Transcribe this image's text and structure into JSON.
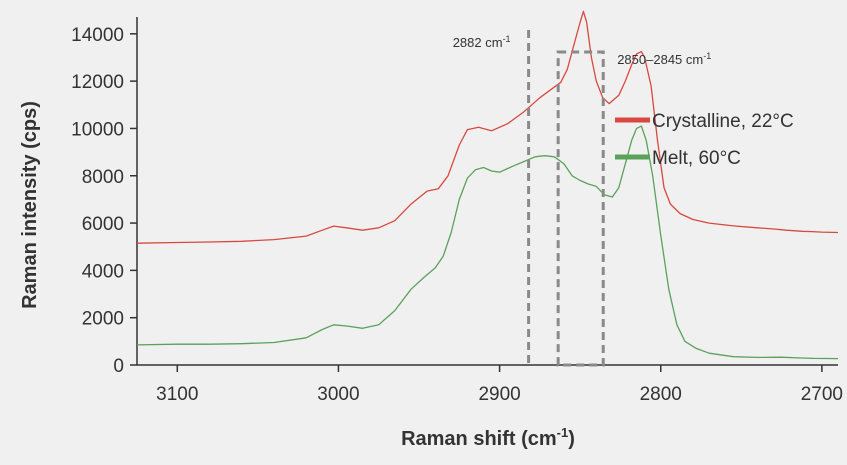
{
  "chart_data": {
    "type": "line",
    "title": "",
    "xlabel": "Raman shift (cm",
    "xlabel_sup": "-1",
    "xlabel_tail": ")",
    "ylabel": "Raman intensity (cps)",
    "xlim": [
      3125,
      2690
    ],
    "ylim": [
      0,
      14500
    ],
    "x_ticks": [
      3100,
      3000,
      2900,
      2800,
      2700
    ],
    "y_ticks": [
      0,
      2000,
      4000,
      6000,
      8000,
      10000,
      12000,
      14000
    ],
    "grid": false,
    "legend_position": "right",
    "series": [
      {
        "name": "Crystalline, 22°C",
        "color": "#d94840",
        "points": [
          [
            3125,
            5150
          ],
          [
            3100,
            5180
          ],
          [
            3080,
            5200
          ],
          [
            3060,
            5230
          ],
          [
            3040,
            5300
          ],
          [
            3020,
            5450
          ],
          [
            3010,
            5700
          ],
          [
            3003,
            5870
          ],
          [
            2995,
            5800
          ],
          [
            2985,
            5700
          ],
          [
            2975,
            5800
          ],
          [
            2965,
            6100
          ],
          [
            2955,
            6800
          ],
          [
            2945,
            7350
          ],
          [
            2938,
            7450
          ],
          [
            2932,
            8000
          ],
          [
            2925,
            9300
          ],
          [
            2920,
            9950
          ],
          [
            2913,
            10050
          ],
          [
            2905,
            9900
          ],
          [
            2895,
            10200
          ],
          [
            2885,
            10700
          ],
          [
            2875,
            11300
          ],
          [
            2867,
            11700
          ],
          [
            2862,
            11950
          ],
          [
            2858,
            12500
          ],
          [
            2854,
            13500
          ],
          [
            2850,
            14500
          ],
          [
            2848,
            14950
          ],
          [
            2846,
            14500
          ],
          [
            2843,
            13000
          ],
          [
            2840,
            12000
          ],
          [
            2836,
            11300
          ],
          [
            2832,
            11050
          ],
          [
            2826,
            11400
          ],
          [
            2822,
            12000
          ],
          [
            2818,
            12700
          ],
          [
            2815,
            13150
          ],
          [
            2812,
            13250
          ],
          [
            2810,
            13000
          ],
          [
            2806,
            11800
          ],
          [
            2802,
            9500
          ],
          [
            2798,
            7500
          ],
          [
            2794,
            6800
          ],
          [
            2788,
            6400
          ],
          [
            2780,
            6150
          ],
          [
            2770,
            6000
          ],
          [
            2755,
            5880
          ],
          [
            2740,
            5800
          ],
          [
            2730,
            5750
          ],
          [
            2722,
            5700
          ],
          [
            2712,
            5650
          ],
          [
            2706,
            5640
          ],
          [
            2700,
            5620
          ],
          [
            2690,
            5600
          ]
        ]
      },
      {
        "name": "Melt, 60°C",
        "color": "#5aa25a",
        "points": [
          [
            3125,
            850
          ],
          [
            3100,
            880
          ],
          [
            3080,
            880
          ],
          [
            3060,
            900
          ],
          [
            3040,
            950
          ],
          [
            3020,
            1150
          ],
          [
            3010,
            1500
          ],
          [
            3003,
            1700
          ],
          [
            2995,
            1650
          ],
          [
            2985,
            1550
          ],
          [
            2975,
            1700
          ],
          [
            2965,
            2300
          ],
          [
            2955,
            3200
          ],
          [
            2947,
            3700
          ],
          [
            2940,
            4100
          ],
          [
            2935,
            4600
          ],
          [
            2930,
            5600
          ],
          [
            2925,
            7000
          ],
          [
            2920,
            7900
          ],
          [
            2915,
            8250
          ],
          [
            2910,
            8350
          ],
          [
            2905,
            8200
          ],
          [
            2900,
            8150
          ],
          [
            2892,
            8400
          ],
          [
            2885,
            8600
          ],
          [
            2878,
            8800
          ],
          [
            2872,
            8850
          ],
          [
            2866,
            8800
          ],
          [
            2860,
            8500
          ],
          [
            2855,
            8000
          ],
          [
            2850,
            7800
          ],
          [
            2845,
            7650
          ],
          [
            2840,
            7550
          ],
          [
            2835,
            7200
          ],
          [
            2830,
            7100
          ],
          [
            2826,
            7500
          ],
          [
            2822,
            8500
          ],
          [
            2818,
            9500
          ],
          [
            2815,
            10000
          ],
          [
            2812,
            10100
          ],
          [
            2809,
            9500
          ],
          [
            2805,
            8000
          ],
          [
            2800,
            5500
          ],
          [
            2795,
            3200
          ],
          [
            2790,
            1700
          ],
          [
            2785,
            1000
          ],
          [
            2778,
            700
          ],
          [
            2770,
            500
          ],
          [
            2755,
            350
          ],
          [
            2740,
            320
          ],
          [
            2725,
            330
          ],
          [
            2715,
            300
          ],
          [
            2705,
            280
          ],
          [
            2690,
            270
          ]
        ]
      }
    ],
    "annotations": [
      {
        "label": "2882 cm",
        "sup": "-1",
        "x": 2882
      },
      {
        "label": "2850–2845 cm",
        "sup": "-1",
        "x_range": [
          2850,
          2845
        ]
      }
    ]
  }
}
